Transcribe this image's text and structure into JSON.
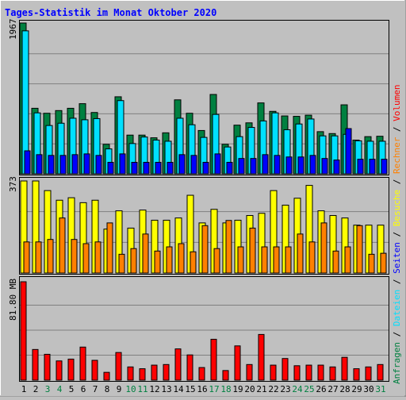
{
  "title": "Tages-Statistik im Monat Oktober 2020",
  "colors": {
    "background": "#c0c0c0",
    "title": "#0000ff",
    "hits": "#008040",
    "files": "#00e0ff",
    "pages": "#0000ff",
    "visits": "#ffff00",
    "sites": "#ff8000",
    "volume": "#ff0000",
    "weekend_day": "#008040"
  },
  "chart_data": [
    {
      "type": "bar",
      "name": "hits-files-pages",
      "ymax_label": "1967",
      "ylim": [
        0,
        1967
      ],
      "x": [
        "1",
        "2",
        "3",
        "4",
        "5",
        "6",
        "7",
        "8",
        "9",
        "10",
        "11",
        "12",
        "13",
        "14",
        "15",
        "16",
        "17",
        "18",
        "19",
        "20",
        "21",
        "22",
        "23",
        "24",
        "25",
        "26",
        "27",
        "28",
        "29",
        "30",
        "31"
      ],
      "weekend_days": [
        "3",
        "4",
        "10",
        "11",
        "17",
        "18",
        "24",
        "25",
        "31"
      ],
      "series": [
        {
          "name": "Anfragen",
          "values": [
            1967,
            855,
            790,
            825,
            855,
            915,
            800,
            385,
            1005,
            505,
            505,
            470,
            535,
            965,
            790,
            565,
            1035,
            385,
            635,
            665,
            925,
            815,
            755,
            750,
            765,
            550,
            525,
            900,
            440,
            485,
            490
          ]
        },
        {
          "name": "Dateien",
          "values": [
            1865,
            795,
            630,
            660,
            725,
            705,
            720,
            325,
            955,
            395,
            480,
            440,
            425,
            725,
            640,
            475,
            775,
            350,
            485,
            605,
            690,
            795,
            575,
            650,
            715,
            495,
            495,
            515,
            430,
            425,
            425
          ]
        },
        {
          "name": "Seiten",
          "values": [
            300,
            250,
            240,
            240,
            250,
            260,
            240,
            150,
            260,
            150,
            150,
            150,
            150,
            250,
            240,
            150,
            260,
            150,
            200,
            200,
            250,
            240,
            220,
            220,
            240,
            200,
            180,
            590,
            190,
            190,
            190
          ]
        }
      ]
    },
    {
      "type": "bar",
      "name": "visits-sites",
      "ymax_label": "373",
      "ylim": [
        0,
        373
      ],
      "x": [
        "1",
        "2",
        "3",
        "4",
        "5",
        "6",
        "7",
        "8",
        "9",
        "10",
        "11",
        "12",
        "13",
        "14",
        "15",
        "16",
        "17",
        "18",
        "19",
        "20",
        "21",
        "22",
        "23",
        "24",
        "25",
        "26",
        "27",
        "28",
        "29",
        "30",
        "31"
      ],
      "series": [
        {
          "name": "Besuche",
          "values": [
            373,
            373,
            334,
            295,
            305,
            285,
            295,
            178,
            252,
            182,
            255,
            214,
            214,
            223,
            315,
            203,
            258,
            203,
            214,
            233,
            242,
            334,
            275,
            303,
            355,
            252,
            233,
            223,
            194,
            194,
            194
          ]
        },
        {
          "name": "Rechner",
          "values": [
            126,
            126,
            136,
            223,
            136,
            119,
            126,
            203,
            76,
            99,
            158,
            89,
            106,
            119,
            86,
            192,
            99,
            213,
            106,
            182,
            106,
            106,
            106,
            158,
            126,
            203,
            89,
            106,
            192,
            76,
            80
          ]
        }
      ]
    },
    {
      "type": "bar",
      "name": "volume",
      "ymax_label": "81.80 MB",
      "ylim": [
        0,
        81.8
      ],
      "x": [
        "1",
        "2",
        "3",
        "4",
        "5",
        "6",
        "7",
        "8",
        "9",
        "10",
        "11",
        "12",
        "13",
        "14",
        "15",
        "16",
        "17",
        "18",
        "19",
        "20",
        "21",
        "22",
        "23",
        "24",
        "25",
        "26",
        "27",
        "28",
        "29",
        "30",
        "31"
      ],
      "series": [
        {
          "name": "Volumen",
          "values": [
            81.8,
            25.5,
            21.5,
            16,
            17.5,
            27.5,
            16.5,
            6.5,
            23,
            11,
            9.5,
            12.5,
            13,
            26,
            21,
            10.5,
            34,
            8,
            28.5,
            13,
            38,
            12.5,
            18,
            12,
            12.5,
            12.5,
            11,
            19,
            9.5,
            11,
            13
          ]
        }
      ]
    }
  ],
  "right_labels": {
    "top": [
      {
        "text": "Anfragen",
        "color": "#008040"
      },
      {
        "text": "Dateien",
        "color": "#00e0ff"
      },
      {
        "text": "Seiten",
        "color": "#0000ff"
      },
      {
        "text": "Besuche",
        "color": "#ffff00"
      },
      {
        "text": "Rechner",
        "color": "#ff8000"
      },
      {
        "text": "Volumen",
        "color": "#ff0000"
      }
    ],
    "separator": " / "
  }
}
